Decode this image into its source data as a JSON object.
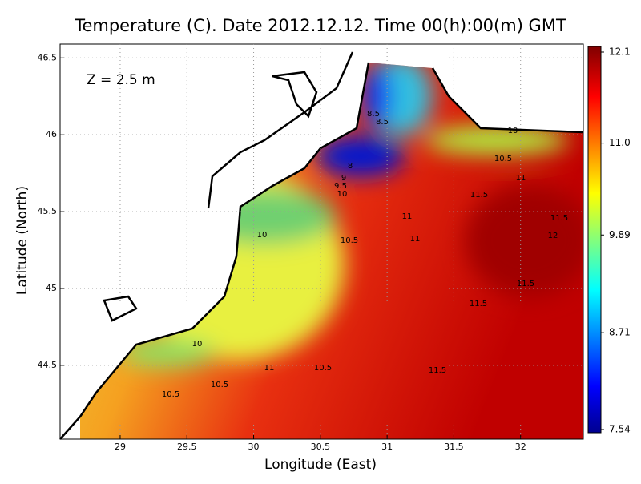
{
  "title": "Temperature (C). Date 2012.12.12. Time 00(h):00(m) GMT",
  "depth_label": "Z = 2.5 m",
  "chart_data": {
    "type": "heatmap",
    "x_label": "Longitude (East)",
    "y_label": "Latitude (North)",
    "xlim": [
      28.55,
      32.47
    ],
    "ylim": [
      44.02,
      46.59
    ],
    "xticks": [
      29,
      29.5,
      30,
      30.5,
      31,
      31.5,
      32
    ],
    "yticks": [
      44.5,
      45,
      45.5,
      46,
      46.5
    ],
    "grid": true,
    "colorbar": {
      "lim": [
        7.54,
        12.1
      ],
      "ticks": [
        7.54,
        8.71,
        9.89,
        {
          "value": 11.0,
          "label": "11.0"
        },
        12.1
      ]
    },
    "contour_labels": [
      "8.5",
      "8.5",
      "8",
      "9",
      "9.5",
      "10",
      "10",
      "10.5",
      "11",
      "11.5",
      "11",
      "11.5",
      "12",
      "11",
      "10.5",
      "10",
      "11.5",
      "11.5",
      "10",
      "11",
      "10.5",
      "11.5",
      "10.5",
      "10.5"
    ]
  }
}
